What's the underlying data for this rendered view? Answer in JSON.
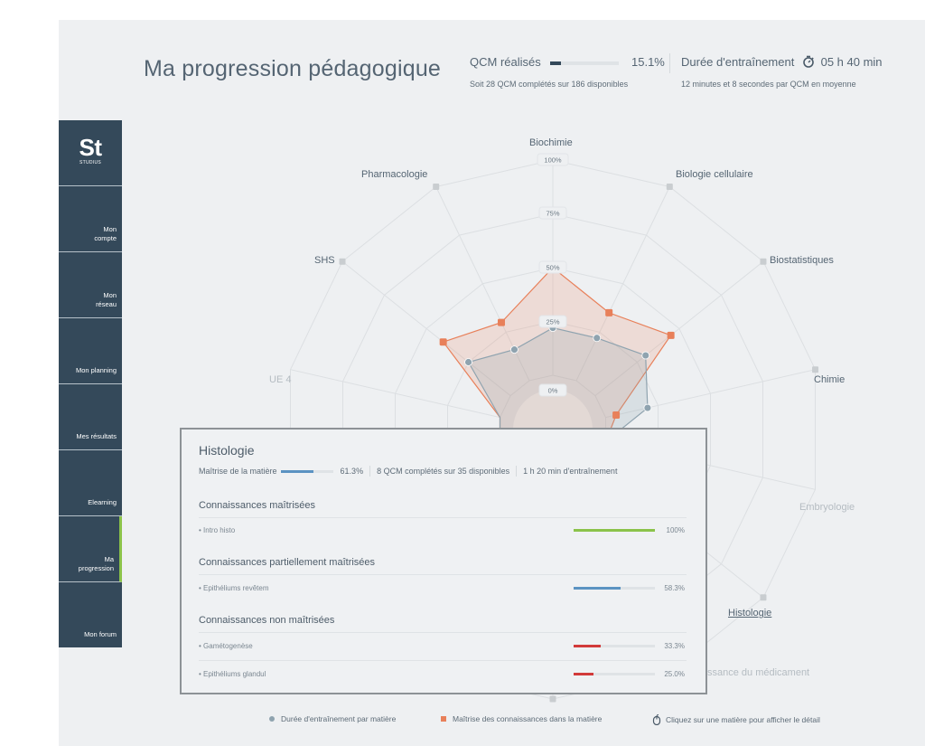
{
  "header": {
    "title": "Ma progression pédagogique",
    "qcm": {
      "label": "QCM réalisés",
      "percent": "15.1%",
      "progress": 15.1,
      "subtitle": "Soit 28 QCM complétés sur 186 disponibles"
    },
    "duration": {
      "label": "Durée d'entraînement",
      "icon": "stopwatch-icon",
      "value": "05 h 40 min",
      "subtitle": "12 minutes et 8 secondes par QCM en moyenne"
    }
  },
  "sidebar": {
    "logo": {
      "mark": "St",
      "name": "STUDIUS"
    },
    "items": [
      {
        "label": "Mon compte",
        "lines": [
          "Mon",
          "compte"
        ],
        "active": false
      },
      {
        "label": "Mon réseau",
        "lines": [
          "Mon",
          "réseau"
        ],
        "active": false
      },
      {
        "label": "Mon planning",
        "lines": [
          "Mon planning"
        ],
        "active": false
      },
      {
        "label": "Mes résultats",
        "lines": [
          "Mes résultats"
        ],
        "active": false
      },
      {
        "label": "Elearning",
        "lines": [
          "Elearning"
        ],
        "active": false
      },
      {
        "label": "Ma progression",
        "lines": [
          "Ma",
          "progression"
        ],
        "active": true
      },
      {
        "label": "Mon forum",
        "lines": [
          "Mon forum"
        ],
        "active": false
      }
    ]
  },
  "chart_data": {
    "type": "radar",
    "title": "",
    "scale_ticks": [
      "0%",
      "25%",
      "50%",
      "75%",
      "100%"
    ],
    "categories": [
      "Biochimie",
      "Biologie cellulaire",
      "Biostatistiques",
      "Chimie",
      "",
      "Embryologie",
      "Histologie",
      "Connaissance du médicament",
      "",
      "",
      "UE 4",
      "",
      "SHS",
      "Pharmacologie"
    ],
    "series": [
      {
        "name": "Maîtrise des connaissances dans la matière",
        "color": "#e8805a",
        "values": [
          50,
          35,
          45,
          5,
          null,
          null,
          null,
          null,
          null,
          null,
          null,
          null,
          40,
          30
        ]
      },
      {
        "name": "Durée d'entraînement par matière",
        "color": "#8fa3af",
        "values": [
          22,
          22,
          30,
          20,
          null,
          null,
          null,
          null,
          null,
          null,
          null,
          null,
          25,
          16
        ]
      }
    ],
    "selected": "Histologie",
    "legend_position": "bottom"
  },
  "axis_labels": {
    "biochimie": "Biochimie",
    "biologie": "Biologie cellulaire",
    "biostat": "Biostatistiques",
    "chimie": "Chimie",
    "embryologie": "Embryologie",
    "histologie": "Histologie",
    "medicament": "ssance du médicament",
    "ue4": "UE 4",
    "shs": "SHS",
    "pharmacologie": "Pharmacologie"
  },
  "ticks": {
    "t0": "0%",
    "t25": "25%",
    "t50": "50%",
    "t75": "75%",
    "t100": "100%"
  },
  "detail": {
    "subject": "Histologie",
    "mastery_label": "Maîtrise de la matière",
    "mastery_percent": "61.3%",
    "mastery_value": 61.3,
    "qcm_text": "8 QCM complétés sur 35 disponibles",
    "duration_text": "1 h 20 min d'entraînement",
    "sections": [
      {
        "title": "Connaissances maîtrisées",
        "color": "#8bc34a",
        "items": [
          {
            "label": "• Intro histo",
            "value": 100,
            "display": "100%"
          }
        ]
      },
      {
        "title": "Connaissances partiellement maîtrisées",
        "color": "#5b93c2",
        "items": [
          {
            "label": "• Epithéliums revêtem",
            "value": 58.3,
            "display": "58.3%"
          }
        ]
      },
      {
        "title": "Connaissances non maîtrisées",
        "color": "#d23a3a",
        "items": [
          {
            "label": "• Gamétogenèse",
            "value": 33.3,
            "display": "33.3%"
          },
          {
            "label": "• Epithéliums glandul",
            "value": 25.0,
            "display": "25.0%"
          }
        ]
      }
    ]
  },
  "legend": {
    "duration": "Durée d'entraînement par matière",
    "mastery": "Maîtrise des connaissances dans la matière",
    "hint": "Cliquez sur une matière pour afficher le détail",
    "hint_icon": "mouse-icon"
  }
}
